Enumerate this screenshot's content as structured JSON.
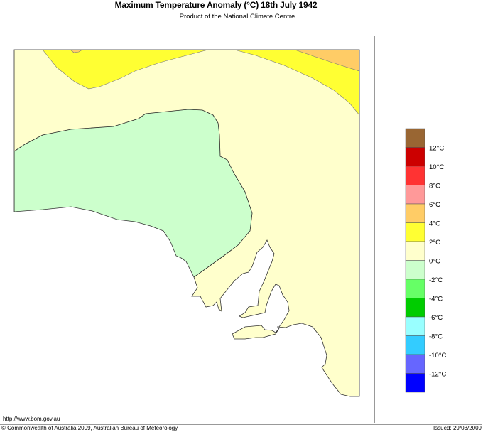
{
  "header": {
    "title": "Maximum Temperature Anomaly (°C)  18th July 1942",
    "subtitle": "Product of the National Climate Centre"
  },
  "footer": {
    "url": "http://www.bom.gov.au",
    "copyright": "© Commonwealth of Australia 2009, Australian Bureau of Meteorology",
    "issued": "Issued: 29/03/2009"
  },
  "chart_data": {
    "type": "heatmap",
    "title": "Maximum Temperature Anomaly (°C)  18th July 1942",
    "region": "South Australia",
    "legend": {
      "placement": "right",
      "labels": [
        "12°C",
        "10°C",
        "8°C",
        "6°C",
        "4°C",
        "2°C",
        "0°C",
        "-2°C",
        "-4°C",
        "-6°C",
        "-8°C",
        "-10°C",
        "-12°C"
      ],
      "colors": [
        "#996633",
        "#cc0000",
        "#ff3333",
        "#ff9999",
        "#ffcc66",
        "#ffff33",
        "#ffffcc",
        "#ccffcc",
        "#66ff66",
        "#00cc00",
        "#99ffff",
        "#33ccff",
        "#6666ff",
        "#0000ff"
      ]
    },
    "regions": [
      {
        "range": "0 to 2°C",
        "area": "most of state",
        "color": "#ffffcc"
      },
      {
        "range": "-2 to 0°C",
        "area": "west / far west coast",
        "color": "#ccffcc"
      },
      {
        "range": "2 to 4°C",
        "area": "north (top-left and top-right)",
        "color": "#ffff33"
      },
      {
        "range": "4 to 6°C",
        "area": "far north-east corner",
        "color": "#ffcc66"
      }
    ]
  }
}
